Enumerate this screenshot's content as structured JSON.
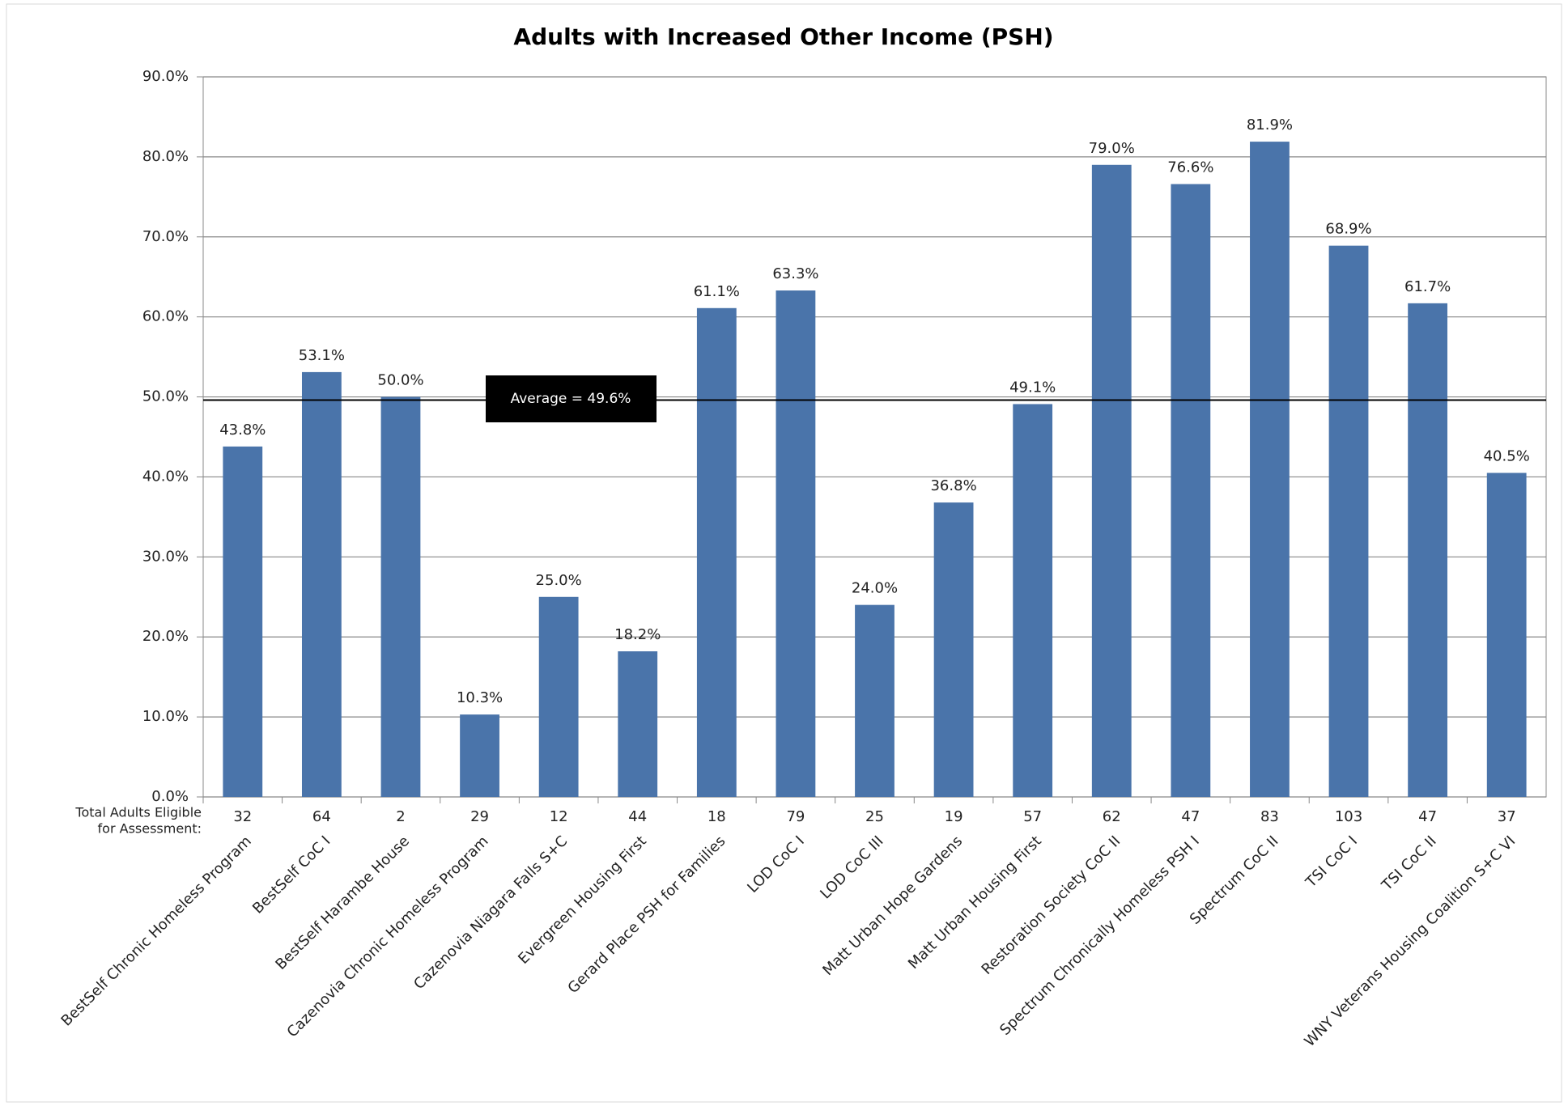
{
  "chart_data": {
    "type": "bar",
    "title": "Adults with Increased Other Income (PSH)",
    "categories": [
      "BestSelf Chronic Homeless Program",
      "BestSelf CoC I",
      "BestSelf Harambe House",
      "Cazenovia Chronic Homeless Program",
      "Cazenovia Niagara Falls S+C",
      "Evergreen Housing First",
      "Gerard Place PSH for Families",
      "LOD CoC I",
      "LOD CoC III",
      "Matt Urban Hope Gardens",
      "Matt Urban Housing First",
      "Restoration Society CoC II",
      "Spectrum Chronically Homeless PSH I",
      "Spectrum CoC II",
      "TSI CoC I",
      "TSI CoC II",
      "WNY Veterans Housing Coalition S+C VI"
    ],
    "values": [
      43.8,
      53.1,
      50.0,
      10.3,
      25.0,
      18.2,
      61.1,
      63.3,
      24.0,
      36.8,
      49.1,
      79.0,
      76.6,
      81.9,
      68.9,
      61.7,
      40.5
    ],
    "value_labels": [
      "43.8%",
      "53.1%",
      "50.0%",
      "10.3%",
      "25.0%",
      "18.2%",
      "61.1%",
      "63.3%",
      "24.0%",
      "36.8%",
      "49.1%",
      "79.0%",
      "76.6%",
      "81.9%",
      "68.9%",
      "61.7%",
      "40.5%"
    ],
    "color": "#4a74aa",
    "ylim": [
      0,
      90
    ],
    "yticks": [
      {
        "value": 0,
        "label": "0.0%"
      },
      {
        "value": 10,
        "label": "10.0%"
      },
      {
        "value": 20,
        "label": "20.0%"
      },
      {
        "value": 30,
        "label": "30.0%"
      },
      {
        "value": 40,
        "label": "40.0%"
      },
      {
        "value": 50,
        "label": "50.0%"
      },
      {
        "value": 60,
        "label": "60.0%"
      },
      {
        "value": 70,
        "label": "70.0%"
      },
      {
        "value": 80,
        "label": "80.0%"
      },
      {
        "value": 90,
        "label": "90.0%"
      }
    ],
    "grid": true,
    "average": {
      "value": 49.6,
      "label": "Average =  49.6%"
    },
    "count_row": {
      "label": [
        "Total Adults Eligible",
        "for Assessment:"
      ],
      "values": [
        32,
        64,
        2,
        29,
        12,
        44,
        18,
        79,
        25,
        19,
        57,
        62,
        47,
        83,
        103,
        47,
        37
      ]
    }
  }
}
